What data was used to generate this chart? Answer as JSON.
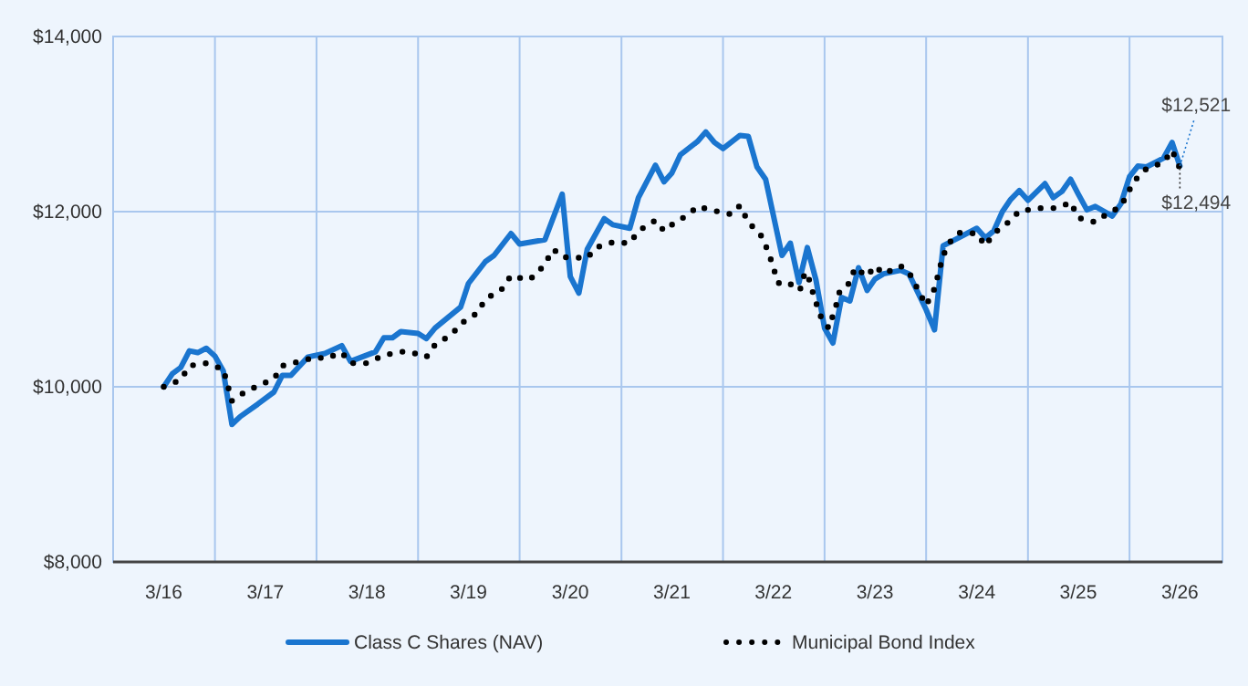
{
  "chart_data": {
    "type": "line",
    "xlim": [
      "2015-09",
      "2026-08"
    ],
    "ylim": [
      8000,
      14000
    ],
    "xticks": [
      {
        "value": "2016-03",
        "label": "3/16"
      },
      {
        "value": "2016-09",
        "label": null
      },
      {
        "value": "2017-03",
        "label": "3/17"
      },
      {
        "value": "2017-09",
        "label": null
      },
      {
        "value": "2018-03",
        "label": "3/18"
      },
      {
        "value": "2018-09",
        "label": null
      },
      {
        "value": "2019-03",
        "label": "3/19"
      },
      {
        "value": "2019-09",
        "label": null
      },
      {
        "value": "2020-03",
        "label": "3/20"
      },
      {
        "value": "2020-09",
        "label": null
      },
      {
        "value": "2021-03",
        "label": "3/21"
      },
      {
        "value": "2021-09",
        "label": null
      },
      {
        "value": "2022-03",
        "label": "3/22"
      },
      {
        "value": "2022-09",
        "label": null
      },
      {
        "value": "2023-03",
        "label": "3/23"
      },
      {
        "value": "2023-09",
        "label": null
      },
      {
        "value": "2024-03",
        "label": "3/24"
      },
      {
        "value": "2024-09",
        "label": null
      },
      {
        "value": "2025-03",
        "label": "3/25"
      },
      {
        "value": "2025-09",
        "label": null
      },
      {
        "value": "2026-03",
        "label": "3/26"
      }
    ],
    "yticks": [
      {
        "value": 8000,
        "label": "$8,000"
      },
      {
        "value": 10000,
        "label": "$10,000"
      },
      {
        "value": 12000,
        "label": "$12,000"
      },
      {
        "value": 14000,
        "label": "$14,000"
      }
    ],
    "grid": true,
    "legend": "bottom",
    "marker": "none",
    "series": [
      {
        "name": "Class C Shares (NAV)",
        "color": "#1a75cf",
        "line_style": "solid",
        "x": [
          "2016-03",
          "2016-04",
          "2016-05",
          "2016-06",
          "2016-07",
          "2016-08",
          "2016-09",
          "2016-10",
          "2016-11",
          "2016-12",
          "2017-02",
          "2017-04",
          "2017-05",
          "2017-06",
          "2017-08",
          "2017-10",
          "2017-12",
          "2018-01",
          "2018-04",
          "2018-05",
          "2018-06",
          "2018-07",
          "2018-09",
          "2018-10",
          "2018-11",
          "2019-02",
          "2019-03",
          "2019-05",
          "2019-06",
          "2019-08",
          "2019-09",
          "2019-12",
          "2020-02",
          "2020-03",
          "2020-04",
          "2020-05",
          "2020-07",
          "2020-08",
          "2020-10",
          "2020-11",
          "2021-01",
          "2021-02",
          "2021-03",
          "2021-04",
          "2021-06",
          "2021-07",
          "2021-08",
          "2021-09",
          "2021-11",
          "2021-12",
          "2022-01",
          "2022-02",
          "2022-04",
          "2022-05",
          "2022-06",
          "2022-07",
          "2022-08",
          "2022-09",
          "2022-10",
          "2022-11",
          "2022-12",
          "2023-01",
          "2023-02",
          "2023-03",
          "2023-04",
          "2023-06",
          "2023-07",
          "2023-09",
          "2023-10",
          "2023-11",
          "2024-01",
          "2024-03",
          "2024-04",
          "2024-05",
          "2024-06",
          "2024-07",
          "2024-08",
          "2024-09",
          "2024-11",
          "2024-12",
          "2025-01",
          "2025-02",
          "2025-03",
          "2025-04",
          "2025-05",
          "2025-07",
          "2025-08",
          "2025-09",
          "2025-10",
          "2025-11",
          "2026-01",
          "2026-02",
          "2026-03"
        ],
        "values": [
          10000,
          10150,
          10220,
          10410,
          10390,
          10440,
          10350,
          10180,
          9570,
          9660,
          9800,
          9940,
          10130,
          10130,
          10340,
          10380,
          10470,
          10290,
          10400,
          10560,
          10560,
          10630,
          10610,
          10550,
          10670,
          10910,
          11180,
          11430,
          11500,
          11750,
          11630,
          11680,
          12200,
          11260,
          11070,
          11570,
          11920,
          11850,
          11810,
          12160,
          12530,
          12340,
          12440,
          12650,
          12800,
          12910,
          12790,
          12720,
          12870,
          12860,
          12510,
          12370,
          11500,
          11640,
          11190,
          11590,
          11220,
          10670,
          10500,
          11020,
          10980,
          11360,
          11100,
          11230,
          11290,
          11330,
          11290,
          10880,
          10650,
          11610,
          11710,
          11810,
          11700,
          11780,
          12000,
          12140,
          12240,
          12130,
          12320,
          12160,
          12230,
          12370,
          12200,
          12020,
          12060,
          11950,
          12090,
          12400,
          12520,
          12510,
          12610,
          12790,
          12521
        ]
      },
      {
        "name": "Municipal Bond Index",
        "color": "#000000",
        "line_style": "dotted",
        "x": [
          "2016-03",
          "2016-05",
          "2016-06",
          "2016-08",
          "2016-10",
          "2016-11",
          "2016-12",
          "2017-02",
          "2017-04",
          "2017-05",
          "2017-07",
          "2017-09",
          "2017-10",
          "2017-12",
          "2018-01",
          "2018-03",
          "2018-05",
          "2018-07",
          "2018-08",
          "2018-10",
          "2018-11",
          "2019-01",
          "2019-02",
          "2019-04",
          "2019-05",
          "2019-07",
          "2019-08",
          "2019-10",
          "2019-11",
          "2019-12",
          "2020-01",
          "2020-02",
          "2020-05",
          "2020-06",
          "2020-08",
          "2020-10",
          "2020-11",
          "2021-01",
          "2021-02",
          "2021-03",
          "2021-05",
          "2021-06",
          "2021-08",
          "2021-10",
          "2021-11",
          "2021-12",
          "2022-01-15",
          "2022-02-07",
          "2022-02-28",
          "2022-03-16",
          "2022-04-19",
          "2022-05-10",
          "2022-06-05",
          "2022-06-23",
          "2022-07-08",
          "2022-07-26",
          "2022-08-17",
          "2022-09-16",
          "2022-10-11",
          "2022-10-26",
          "2022-11-28",
          "2022-12-20",
          "2023-02",
          "2023-03",
          "2023-04",
          "2023-06",
          "2023-07",
          "2023-08",
          "2023-09",
          "2023-10",
          "2023-11",
          "2023-12",
          "2024-01",
          "2024-03",
          "2024-04",
          "2024-05",
          "2024-07",
          "2024-08",
          "2024-09",
          "2024-10",
          "2024-12",
          "2025-01",
          "2025-02",
          "2025-03",
          "2025-05",
          "2025-06",
          "2025-08",
          "2025-09",
          "2025-10",
          "2025-11",
          "2026-01",
          "2026-02",
          "2026-03"
        ],
        "values": [
          10000,
          10080,
          10240,
          10270,
          10200,
          9840,
          9910,
          10010,
          10090,
          10240,
          10290,
          10340,
          10320,
          10390,
          10270,
          10270,
          10360,
          10400,
          10400,
          10340,
          10480,
          10600,
          10720,
          10840,
          11000,
          11120,
          11270,
          11220,
          11280,
          11410,
          11570,
          11480,
          11470,
          11590,
          11650,
          11640,
          11780,
          11900,
          11780,
          11850,
          11970,
          12060,
          12010,
          11970,
          12070,
          11880,
          11730,
          11570,
          11380,
          11190,
          11150,
          11180,
          11110,
          11310,
          11220,
          11020,
          10810,
          10670,
          10910,
          11100,
          11180,
          11360,
          11260,
          11380,
          11290,
          11380,
          11310,
          11120,
          10930,
          11120,
          11500,
          11680,
          11760,
          11750,
          11610,
          11750,
          11900,
          12010,
          12020,
          12040,
          12040,
          12060,
          12110,
          11930,
          11880,
          11950,
          12060,
          12250,
          12400,
          12490,
          12560,
          12700,
          12494
        ]
      }
    ],
    "annotations": [
      {
        "text": "$12,521",
        "x": "2026-03",
        "y": 12521
      },
      {
        "text": "$12,494",
        "x": "2026-03",
        "y": 12494
      }
    ]
  }
}
